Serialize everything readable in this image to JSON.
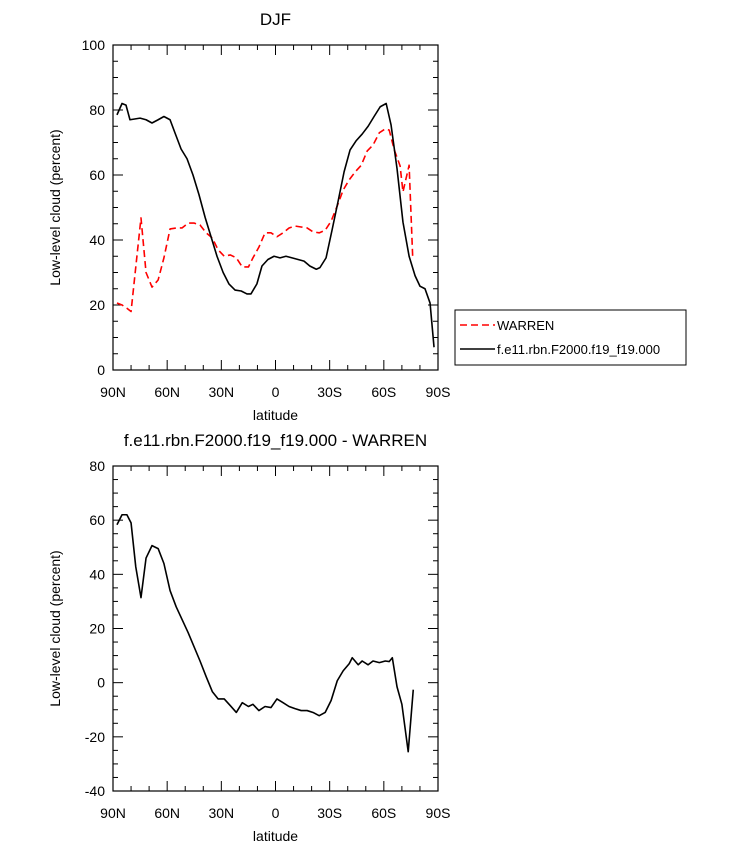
{
  "chart_data": [
    {
      "type": "line",
      "title": "DJF",
      "x_label": "latitude",
      "y_label": "Low-level cloud (percent)",
      "xlim": [
        90,
        -90
      ],
      "xticks": [
        {
          "value": 90,
          "label": "90N"
        },
        {
          "value": 60,
          "label": "60N"
        },
        {
          "value": 30,
          "label": "30N"
        },
        0,
        {
          "value": -30,
          "label": "30S"
        },
        {
          "value": -60,
          "label": "60S"
        },
        {
          "value": -90,
          "label": "90S"
        }
      ],
      "ylim": [
        0,
        100
      ],
      "yticks": [
        0,
        20,
        40,
        60,
        80,
        100
      ],
      "legend": "right",
      "series": [
        {
          "name": "WARREN",
          "color": "#ff0000",
          "dash": "dashed",
          "x": [
            87.8,
            85,
            82.3,
            80,
            74.5,
            71.7,
            68.4,
            65,
            61.8,
            58.4,
            55,
            51.8,
            48.4,
            45,
            41.8,
            38.4,
            35,
            31.8,
            28.4,
            25,
            21.7,
            18.4,
            15,
            12.5,
            9.2,
            5.8,
            2.5,
            -0.8,
            -4.2,
            -7.5,
            -10.8,
            -14.2,
            -17.5,
            -20.8,
            -24.2,
            -27.5,
            -30.8,
            -34.2,
            -37.5,
            -40.8,
            -44.2,
            -47.5,
            -50.8,
            -54,
            -57.5,
            -60.8,
            -63,
            -65.8,
            -69,
            -70.6,
            -74,
            -76
          ],
          "values": [
            20.6,
            20,
            19,
            18,
            46.8,
            30,
            25.5,
            27.7,
            34.5,
            43.4,
            43.7,
            43.7,
            45.2,
            45.2,
            44.6,
            42.2,
            40.6,
            37,
            35,
            35.4,
            34.5,
            31.7,
            31.7,
            34.5,
            37.8,
            42.2,
            42.2,
            41,
            42.2,
            43.7,
            44.3,
            44,
            43.7,
            42.5,
            42.2,
            43,
            45.8,
            50.5,
            55.4,
            58.5,
            61,
            63,
            67.4,
            69.2,
            73,
            74.2,
            73.8,
            67.7,
            62.8,
            54.8,
            63,
            34.5
          ]
        },
        {
          "name": "f.e11.rbn.F2000.f19_f19.000",
          "color": "#000000",
          "dash": "solid",
          "x": [
            87.8,
            85,
            82.8,
            80.6,
            75,
            71.7,
            68.4,
            65,
            61.8,
            58.4,
            55.7,
            52.3,
            49,
            45.7,
            42.4,
            39,
            35.7,
            32.4,
            29,
            25.8,
            22.4,
            19,
            15.8,
            13.6,
            10.3,
            7.5,
            4.2,
            0.8,
            -2.5,
            -5.8,
            -9.2,
            -12.5,
            -15.8,
            -19,
            -22.6,
            -24.6,
            -28,
            -31.3,
            -34.7,
            -38,
            -41.3,
            -44.6,
            -48,
            -51.3,
            -54.6,
            -58,
            -61.3,
            -64,
            -67.3,
            -70.6,
            -74,
            -77.3,
            -80,
            -82.8,
            -85.6,
            -87.8
          ],
          "values": [
            78.5,
            82,
            81.5,
            77,
            77.5,
            77,
            76,
            77,
            78,
            77,
            73,
            68,
            65,
            60,
            54,
            47,
            41,
            35,
            30,
            26.5,
            24.6,
            24.3,
            23.4,
            23.4,
            26.5,
            32,
            34,
            35,
            34.5,
            35,
            34.5,
            34,
            33.5,
            32,
            31,
            31.5,
            34.5,
            43,
            52,
            61,
            67.7,
            70.5,
            72.6,
            75,
            78,
            81,
            82,
            75.4,
            62,
            45.5,
            35,
            29,
            25.8,
            25,
            20.6,
            7
          ]
        }
      ]
    },
    {
      "type": "line",
      "title": "f.e11.rbn.F2000.f19_f19.000 - WARREN",
      "x_label": "latitude",
      "y_label": "Low-level cloud (percent)",
      "xlim": [
        90,
        -90
      ],
      "xticks": [
        {
          "value": 90,
          "label": "90N"
        },
        {
          "value": 60,
          "label": "60N"
        },
        {
          "value": 30,
          "label": "30N"
        },
        0,
        {
          "value": -30,
          "label": "30S"
        },
        {
          "value": -60,
          "label": "60S"
        },
        {
          "value": -90,
          "label": "90S"
        }
      ],
      "ylim": [
        -40,
        80
      ],
      "yticks": [
        -40,
        -20,
        0,
        20,
        40,
        60,
        80
      ],
      "series": [
        {
          "color": "#000000",
          "dash": "solid",
          "x": [
            87.8,
            85,
            82.3,
            80,
            77.4,
            74.5,
            71.7,
            68.4,
            65,
            61.8,
            58.4,
            55,
            48.4,
            41.8,
            38.4,
            35,
            31.8,
            28.4,
            25,
            21.7,
            18.4,
            15,
            12.5,
            9.2,
            5.8,
            2.5,
            -0.8,
            -4.2,
            -7.5,
            -10.8,
            -14.2,
            -17.5,
            -20.8,
            -24.2,
            -27.5,
            -30.8,
            -34.2,
            -37.5,
            -40.8,
            -42.5,
            -45.8,
            -48,
            -51.3,
            -54,
            -57.5,
            -60.8,
            -63,
            -64.7,
            -67.3,
            -70,
            -73.5,
            -76.3
          ],
          "values": [
            58.3,
            62,
            62,
            59,
            42.8,
            31.4,
            46,
            50.6,
            49.5,
            44,
            34,
            28,
            18.5,
            8,
            2.2,
            -3.3,
            -6,
            -6,
            -8.5,
            -11,
            -7.4,
            -8.8,
            -8,
            -10.3,
            -8.8,
            -9.2,
            -6,
            -7.4,
            -8.8,
            -9.6,
            -10.3,
            -10.3,
            -11,
            -12.2,
            -11,
            -6.6,
            0.7,
            4.4,
            7,
            9.2,
            6.6,
            8,
            6.6,
            8,
            7.4,
            8,
            7.8,
            9.2,
            -1.5,
            -8,
            -25.5,
            -2.6
          ]
        }
      ]
    }
  ]
}
